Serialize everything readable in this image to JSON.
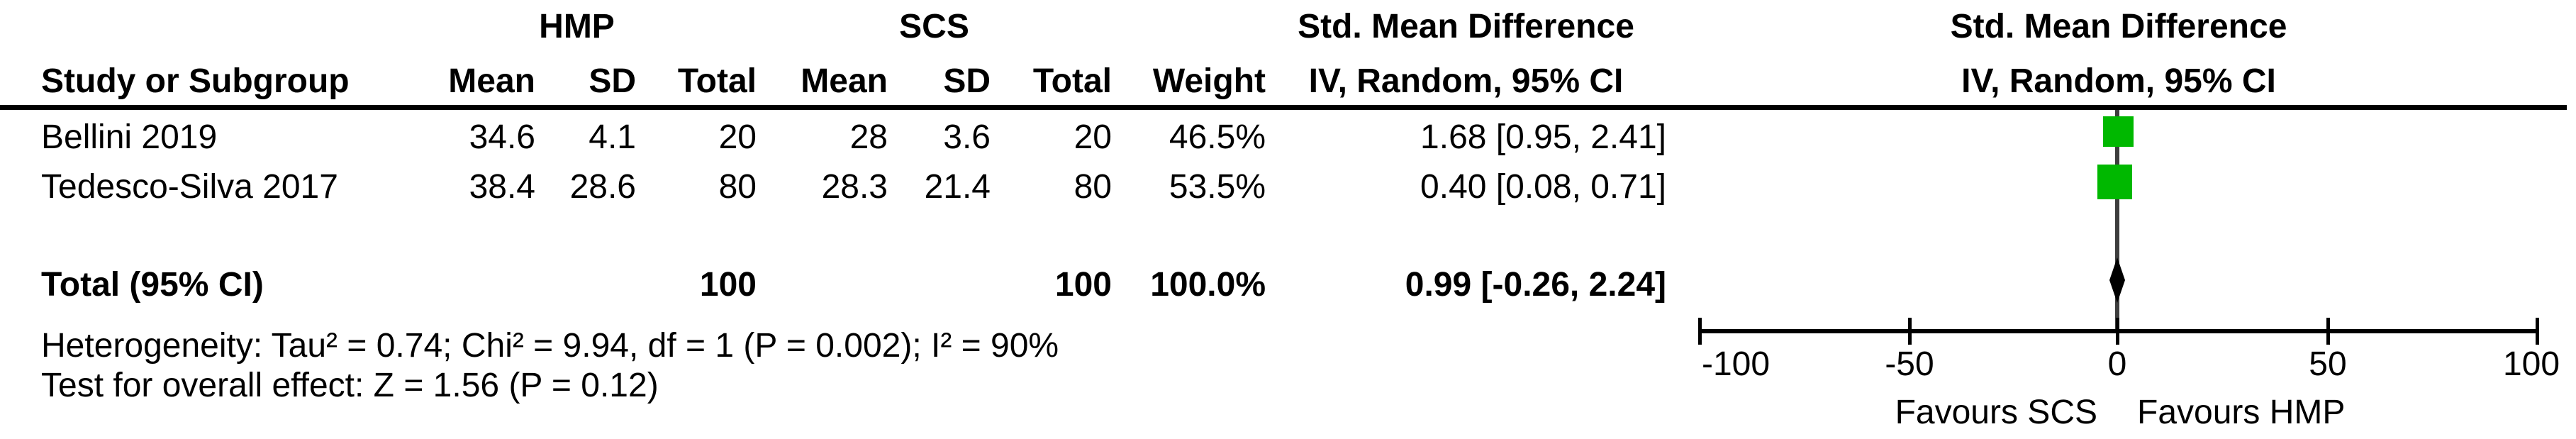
{
  "table": {
    "group_headers": {
      "hmp": "HMP",
      "scs": "SCS",
      "smd": "Std. Mean Difference"
    },
    "column_headers": {
      "study": "Study or Subgroup",
      "mean": "Mean",
      "sd": "SD",
      "total": "Total",
      "weight": "Weight",
      "ci": "IV, Random, 95% CI"
    },
    "rows": [
      {
        "study": "Bellini 2019",
        "hmp_mean": "34.6",
        "hmp_sd": "4.1",
        "hmp_total": "20",
        "scs_mean": "28",
        "scs_sd": "3.6",
        "scs_total": "20",
        "weight": "46.5%",
        "smd_ci": "1.68 [0.95, 2.41]"
      },
      {
        "study": "Tedesco-Silva 2017",
        "hmp_mean": "38.4",
        "hmp_sd": "28.6",
        "hmp_total": "80",
        "scs_mean": "28.3",
        "scs_sd": "21.4",
        "scs_total": "80",
        "weight": "53.5%",
        "smd_ci": "0.40 [0.08, 0.71]"
      }
    ],
    "total_row": {
      "label": "Total (95% CI)",
      "hmp_total": "100",
      "scs_total": "100",
      "weight": "100.0%",
      "smd_ci": "0.99 [-0.26, 2.24]"
    },
    "footnotes": {
      "heterogeneity": "Heterogeneity: Tau² = 0.74; Chi² = 9.94, df = 1 (P = 0.002); I² = 90%",
      "overall_effect": "Test for overall effect: Z = 1.56 (P = 0.12)"
    }
  },
  "plot": {
    "header_line1": "Std. Mean Difference",
    "header_line2": "IV, Random, 95% CI",
    "axis_tick_labels": [
      "-100",
      "-50",
      "0",
      "50",
      "100"
    ],
    "favours_left": "Favours SCS",
    "favours_right": "Favours HMP",
    "colors": {
      "study_marker": "#00b800",
      "pooled_marker": "#000000",
      "zero_line": "#3d3d3d"
    }
  },
  "chart_data": {
    "type": "forest",
    "effect_measure": "Std. Mean Difference (IV, Random, 95% CI)",
    "comparison_groups": [
      "HMP",
      "SCS"
    ],
    "studies": [
      {
        "name": "Bellini 2019",
        "hmp": {
          "mean": 34.6,
          "sd": 4.1,
          "total": 20
        },
        "scs": {
          "mean": 28,
          "sd": 3.6,
          "total": 20
        },
        "weight_pct": 46.5,
        "smd": 1.68,
        "ci": [
          0.95,
          2.41
        ]
      },
      {
        "name": "Tedesco-Silva 2017",
        "hmp": {
          "mean": 38.4,
          "sd": 28.6,
          "total": 80
        },
        "scs": {
          "mean": 28.3,
          "sd": 21.4,
          "total": 80
        },
        "weight_pct": 53.5,
        "smd": 0.4,
        "ci": [
          0.08,
          0.71
        ]
      }
    ],
    "pooled": {
      "label": "Total (95% CI)",
      "hmp_total": 100,
      "scs_total": 100,
      "weight_pct": 100.0,
      "smd": 0.99,
      "ci": [
        -0.26,
        2.24
      ]
    },
    "heterogeneity": {
      "tau2": 0.74,
      "chi2": 9.94,
      "df": 1,
      "p": 0.002,
      "i2_pct": 90
    },
    "overall_effect": {
      "z": 1.56,
      "p": 0.12
    },
    "xaxis": {
      "ticks": [
        -100,
        -50,
        0,
        50,
        100
      ],
      "range": [
        -100,
        100
      ],
      "label_left": "Favours SCS",
      "label_right": "Favours HMP"
    }
  }
}
